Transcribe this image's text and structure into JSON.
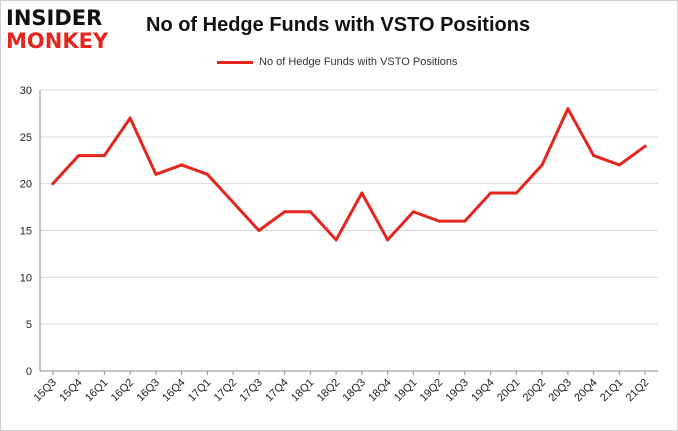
{
  "logo": {
    "line1": "INSIDER",
    "line2": "MONKEY"
  },
  "title": "No of Hedge Funds with VSTO Positions",
  "legend": {
    "label": "No of Hedge Funds with VSTO Positions"
  },
  "colors": {
    "series": "#e4261f",
    "grid": "#d9d9d9",
    "logo_dark": "#111111",
    "logo_red": "#e4261f"
  },
  "chart_data": {
    "type": "line",
    "title": "No of Hedge Funds with VSTO Positions",
    "xlabel": "",
    "ylabel": "",
    "ylim": [
      0,
      30
    ],
    "yticks": [
      0,
      5,
      10,
      15,
      20,
      25,
      30
    ],
    "grid": "horizontal",
    "legend_position": "top-center",
    "categories": [
      "15Q3",
      "15Q4",
      "16Q1",
      "16Q2",
      "16Q3",
      "16Q4",
      "17Q1",
      "17Q2",
      "17Q3",
      "17Q4",
      "18Q1",
      "18Q2",
      "18Q3",
      "18Q4",
      "19Q1",
      "19Q2",
      "19Q3",
      "19Q4",
      "20Q1",
      "20Q2",
      "20Q3",
      "20Q4",
      "21Q1",
      "21Q2"
    ],
    "series": [
      {
        "name": "No of Hedge Funds with VSTO Positions",
        "values": [
          20,
          23,
          23,
          27,
          21,
          22,
          21,
          18,
          15,
          17,
          17,
          14,
          19,
          14,
          17,
          16,
          16,
          19,
          19,
          22,
          28,
          23,
          22,
          24
        ]
      }
    ]
  }
}
